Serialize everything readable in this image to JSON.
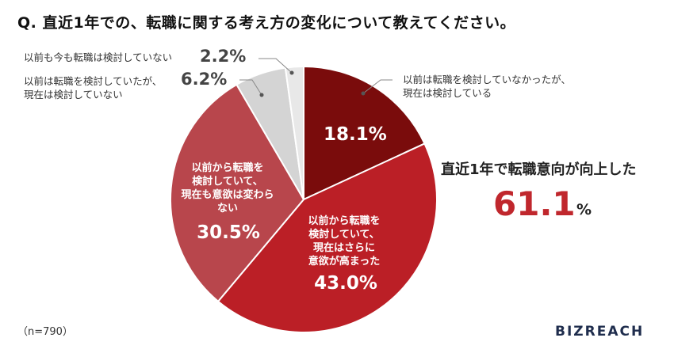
{
  "title": "Q. 直近1年での、転職に関する考え方の変化について教えてください。",
  "note": "（n=790）",
  "logo": "BIZREACH",
  "summary": {
    "label": "直近1年で転職意向が向上した",
    "value": "61.1",
    "unit": "%"
  },
  "chart_data": {
    "type": "pie",
    "title": "Q. 直近1年での、転職に関する考え方の変化について教えてください。",
    "slices": [
      {
        "label": "以前は転職を検討していなかったが、現在は検討している",
        "value": 18.1,
        "display": "18.1%",
        "color": "#7a0c0c"
      },
      {
        "label": "以前から転職を検討していて、現在はさらに意欲が高まった",
        "value": 43.0,
        "display": "43.0%",
        "color": "#bb1f26"
      },
      {
        "label": "以前から転職を検討していて、現在も意欲は変わらない",
        "value": 30.5,
        "display": "30.5%",
        "color": "#b8464c"
      },
      {
        "label": "以前は転職を検討していたが、現在は検討していない",
        "value": 6.2,
        "display": "6.2%",
        "color": "#d4d4d4"
      },
      {
        "label": "以前も今も転職は検討していない",
        "value": 2.2,
        "display": "2.2%",
        "color": "#e8e8e8"
      }
    ]
  },
  "labels": {
    "s0_line1": "以前は転職を検討していなかったが、",
    "s0_line2": "現在は検討している",
    "s1_line1": "以前から転職を",
    "s1_line2": "検討していて、",
    "s1_line3": "現在はさらに",
    "s1_line4": "意欲が高まった",
    "s2_line1": "以前から転職を",
    "s2_line2": "検討していて、",
    "s2_line3": "現在も意欲は変わら",
    "s2_line4": "ない",
    "s3_line1": "以前は転職を検討していたが、",
    "s3_line2": "現在は検討していない",
    "s4_line1": "以前も今も転職は検討していない"
  }
}
